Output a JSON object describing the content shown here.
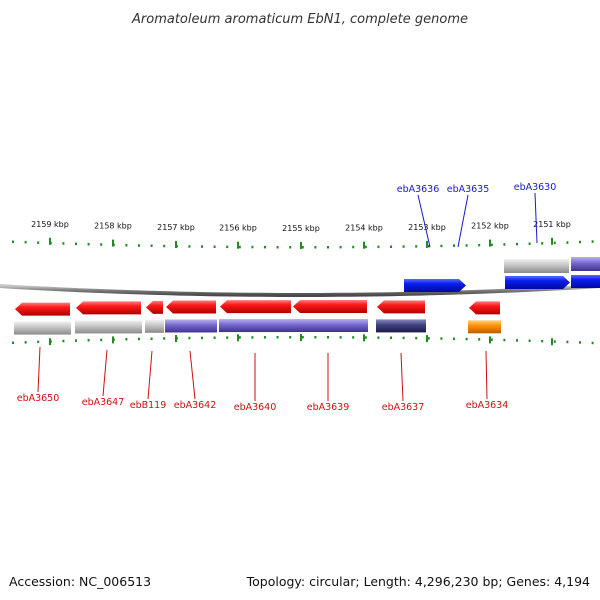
{
  "title": "Aromatoleum aromaticum EbN1, complete genome",
  "footer": {
    "accession": "Accession: NC_006513",
    "summary": "Topology: circular; Length: 4,296,230 bp; Genes: 4,194"
  },
  "colors": {
    "forward_label": "#1a1acc",
    "reverse_label": "#cc1111",
    "tick": "#228b22",
    "backbone": "#888888",
    "cds_red": "#ff0000",
    "cds_blue": "#0011ee",
    "track_grey": "#bdbdbd",
    "track_purple": "#7766cc",
    "track_darkpurple": "#404080",
    "track_orange": "#ff8c00"
  },
  "ticks": [
    "2159 kbp",
    "2158 kbp",
    "2157 kbp",
    "2156 kbp",
    "2155 kbp",
    "2154 kbp",
    "2153 kbp",
    "2152 kbp",
    "2151 kbp"
  ],
  "genes": {
    "forward": [
      {
        "name": "ebA3636",
        "color": "blue"
      },
      {
        "name": "ebA3635",
        "color": "blue"
      },
      {
        "name": "ebA3630",
        "color": "blue"
      }
    ],
    "reverse": [
      {
        "name": "ebA3650",
        "color": "red",
        "track": "grey"
      },
      {
        "name": "ebA3647",
        "color": "red",
        "track": "grey"
      },
      {
        "name": "ebB119",
        "color": "red",
        "track": "grey"
      },
      {
        "name": "ebA3642",
        "color": "red",
        "track": "purple"
      },
      {
        "name": "ebA3640",
        "color": "red",
        "track": "purple"
      },
      {
        "name": "ebA3639",
        "color": "red",
        "track": "purple"
      },
      {
        "name": "ebA3637",
        "color": "red",
        "track": "darkpurple"
      },
      {
        "name": "ebA3634",
        "color": "red",
        "track": "orange"
      }
    ]
  }
}
